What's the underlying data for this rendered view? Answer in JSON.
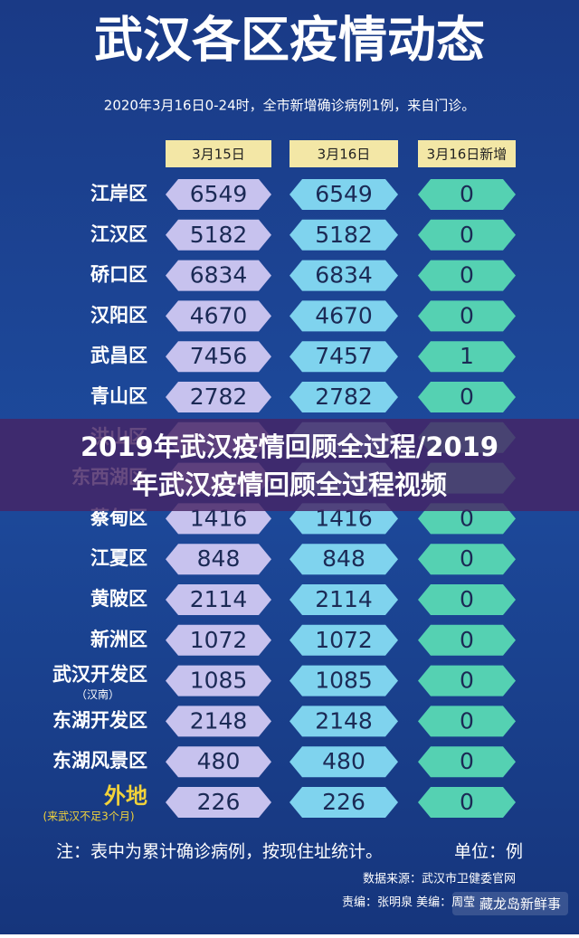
{
  "header": {
    "title": "武汉各区疫情动态",
    "subtitle": "2020年3月16日0-24时，全市新增确诊病例1例，来自门诊。"
  },
  "table": {
    "columns": [
      "3月15日",
      "3月16日",
      "3月16日新增"
    ],
    "rows": [
      {
        "district": "江岸区",
        "mar15": 6549,
        "mar16": 6549,
        "new": 0
      },
      {
        "district": "江汉区",
        "mar15": 5182,
        "mar16": 5182,
        "new": 0
      },
      {
        "district": "硚口区",
        "mar15": 6834,
        "mar16": 6834,
        "new": 0
      },
      {
        "district": "汉阳区",
        "mar15": 4670,
        "mar16": 4670,
        "new": 0
      },
      {
        "district": "武昌区",
        "mar15": 7456,
        "mar16": 7457,
        "new": 1
      },
      {
        "district": "青山区",
        "mar15": 2782,
        "mar16": 2782,
        "new": 0
      },
      {
        "district": "洪山区"
      },
      {
        "district": "东西湖区"
      },
      {
        "district": "蔡甸区",
        "mar15": 1416,
        "mar16": 1416,
        "new": 0
      },
      {
        "district": "江夏区",
        "mar15": 848,
        "mar16": 848,
        "new": 0
      },
      {
        "district": "黄陂区",
        "mar15": 2114,
        "mar16": 2114,
        "new": 0
      },
      {
        "district": "新洲区",
        "mar15": 1072,
        "mar16": 1072,
        "new": 0
      },
      {
        "district": "武汉开发区",
        "note": "（汉南）",
        "mar15": 1085,
        "mar16": 1085,
        "new": 0
      },
      {
        "district": "东湖开发区",
        "mar15": 2148,
        "mar16": 2148,
        "new": 0
      },
      {
        "district": "东湖风景区",
        "mar15": 480,
        "mar16": 480,
        "new": 0
      },
      {
        "district": "外地",
        "note": "(来武汉不足3个月)",
        "mar15": 226,
        "mar16": 226,
        "new": 0
      }
    ]
  },
  "footer": {
    "note": "注：表中为累计确诊病例，按现住址统计。",
    "unit": "单位：例",
    "source": "数据来源：武汉市卫健委官网",
    "editor": "责编：张明泉  美编：周莹"
  },
  "banner": {
    "line1": "2019年武汉疫情回顾全过程/2019",
    "line2": "年武汉疫情回顾全过程视频"
  },
  "watermark": "藏龙岛新鲜事"
}
